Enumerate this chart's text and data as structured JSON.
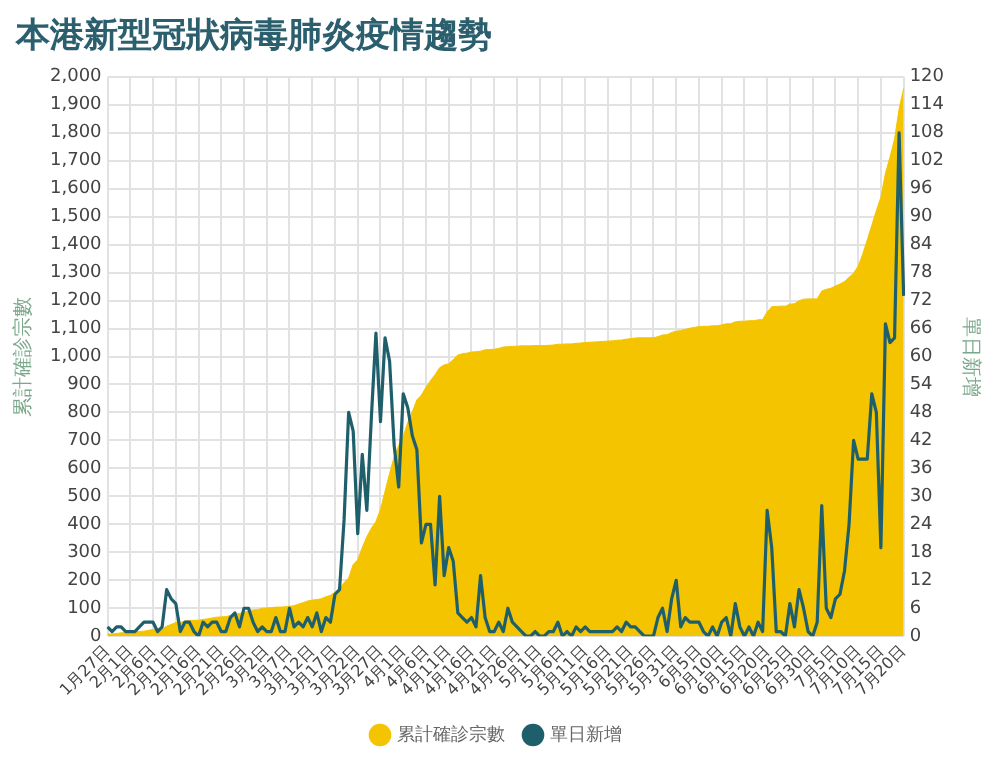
{
  "chart_data": {
    "type": "line",
    "title": "本港新型冠狀病毒肺炎疫情趨勢",
    "ylabel": "累計確診宗數",
    "y2label": "單日新增",
    "categories": [
      "1月27日",
      null,
      null,
      null,
      null,
      "2月1日",
      null,
      null,
      null,
      null,
      "2月6日",
      null,
      null,
      null,
      null,
      "2月11日",
      null,
      null,
      null,
      null,
      "2月16日",
      null,
      null,
      null,
      null,
      "2月21日",
      null,
      null,
      null,
      null,
      "2月26日",
      null,
      null,
      null,
      null,
      "3月2日",
      null,
      null,
      null,
      null,
      "3月7日",
      null,
      null,
      null,
      null,
      "3月12日",
      null,
      null,
      null,
      null,
      "3月17日",
      null,
      null,
      null,
      null,
      "3月22日",
      null,
      null,
      null,
      null,
      "3月27日",
      null,
      null,
      null,
      null,
      "4月1日",
      null,
      null,
      null,
      null,
      "4月6日",
      null,
      null,
      null,
      null,
      "4月11日",
      null,
      null,
      null,
      null,
      "4月16日",
      null,
      null,
      null,
      null,
      "4月21日",
      null,
      null,
      null,
      null,
      "4月26日",
      null,
      null,
      null,
      null,
      "5月1日",
      null,
      null,
      null,
      null,
      "5月6日",
      null,
      null,
      null,
      null,
      "5月11日",
      null,
      null,
      null,
      null,
      "5月16日",
      null,
      null,
      null,
      null,
      "5月21日",
      null,
      null,
      null,
      null,
      "5月26日",
      null,
      null,
      null,
      null,
      "5月31日",
      null,
      null,
      null,
      null,
      "6月5日",
      null,
      null,
      null,
      null,
      "6月10日",
      null,
      null,
      null,
      null,
      "6月15日",
      null,
      null,
      null,
      null,
      "6月20日",
      null,
      null,
      null,
      null,
      "6月25日",
      null,
      null,
      null,
      null,
      "6月30日",
      null,
      null,
      null,
      null,
      "7月5日",
      null,
      null,
      null,
      null,
      "7月10日",
      null,
      null,
      null,
      null,
      "7月15日",
      null,
      null,
      null,
      null,
      "7月20日"
    ],
    "series": [
      {
        "name": "累計確診宗數",
        "type": "area",
        "axis": "y",
        "color": "#f5c400",
        "values": [
          8,
          8,
          10,
          12,
          13,
          14,
          15,
          17,
          18,
          21,
          24,
          25,
          26,
          36,
          42,
          49,
          50,
          53,
          56,
          57,
          57,
          60,
          62,
          65,
          68,
          69,
          70,
          74,
          79,
          81,
          85,
          91,
          94,
          95,
          100,
          101,
          102,
          104,
          104,
          105,
          107,
          109,
          115,
          120,
          126,
          129,
          131,
          134,
          141,
          146,
          157,
          167,
          192,
          208,
          256,
          273,
          317,
          356,
          386,
          410,
          453,
          518,
          582,
          641,
          682,
          714,
          765,
          802,
          845,
          862,
          890,
          914,
          935,
          960,
          970,
          974,
          989,
          1005,
          1010,
          1012,
          1016,
          1017,
          1019,
          1024,
          1025,
          1026,
          1029,
          1034,
          1035,
          1036,
          1037,
          1038,
          1038,
          1038,
          1039,
          1039,
          1039,
          1040,
          1041,
          1044,
          1044,
          1045,
          1045,
          1047,
          1048,
          1050,
          1051,
          1052,
          1053,
          1054,
          1055,
          1056,
          1058,
          1059,
          1062,
          1064,
          1066,
          1067,
          1067,
          1067,
          1067,
          1071,
          1077,
          1078,
          1086,
          1090,
          1093,
          1097,
          1101,
          1104,
          1107,
          1108,
          1108,
          1110,
          1110,
          1113,
          1117,
          1117,
          1124,
          1126,
          1126,
          1128,
          1128,
          1131,
          1132,
          1159,
          1178,
          1179,
          1180,
          1180,
          1187,
          1189,
          1199,
          1205,
          1206,
          1206,
          1206,
          1234,
          1240,
          1244,
          1252,
          1259,
          1268,
          1283,
          1298,
          1323,
          1366,
          1417,
          1469,
          1521,
          1570,
          1655,
          1713,
          1777,
          1885,
          1958
        ]
      },
      {
        "name": "單日新增",
        "type": "line",
        "axis": "y2",
        "color": "#1f5f6b",
        "values": [
          2,
          1,
          2,
          2,
          1,
          1,
          1,
          2,
          3,
          3,
          3,
          1,
          2,
          10,
          8,
          7,
          1,
          3,
          3,
          1,
          0,
          3,
          2,
          3,
          3,
          1,
          1,
          4,
          5,
          2,
          6,
          6,
          3,
          1,
          2,
          1,
          1,
          4,
          1,
          1,
          6,
          2,
          3,
          2,
          4,
          2,
          5,
          1,
          4,
          3,
          9,
          10,
          25,
          48,
          44,
          22,
          39,
          27,
          47,
          65,
          46,
          64,
          59,
          41,
          32,
          52,
          49,
          43,
          40,
          20,
          24,
          24,
          11,
          30,
          13,
          19,
          16,
          5,
          4,
          3,
          4,
          2,
          13,
          4,
          1,
          1,
          3,
          1,
          6,
          3,
          2,
          1,
          0,
          0,
          1,
          0,
          0,
          1,
          1,
          3,
          0,
          1,
          0,
          2,
          1,
          2,
          1,
          1,
          1,
          1,
          1,
          1,
          2,
          1,
          3,
          2,
          2,
          1,
          0,
          0,
          0,
          4,
          6,
          1,
          8,
          12,
          2,
          4,
          3,
          3,
          3,
          1,
          0,
          2,
          0,
          3,
          4,
          0,
          7,
          2,
          0,
          2,
          0,
          3,
          1,
          27,
          19,
          1,
          1,
          0,
          7,
          2,
          10,
          6,
          1,
          0,
          3,
          28,
          6,
          4,
          8,
          9,
          14,
          24,
          42,
          38,
          38,
          38,
          52,
          48,
          19,
          67,
          63,
          64,
          108,
          73
        ]
      }
    ],
    "ylim": [
      0,
      2000
    ],
    "yticks": [
      0,
      100,
      200,
      300,
      400,
      500,
      600,
      700,
      800,
      900,
      {
        "value": 1000,
        "label": "1,000"
      },
      {
        "value": 1100,
        "label": "1,100"
      },
      {
        "value": 1200,
        "label": "1,200"
      },
      {
        "value": 1300,
        "label": "1,300"
      },
      {
        "value": 1400,
        "label": "1,400"
      },
      {
        "value": 1500,
        "label": "1,500"
      },
      {
        "value": 1600,
        "label": "1,600"
      },
      {
        "value": 1700,
        "label": "1,700"
      },
      {
        "value": 1800,
        "label": "1,800"
      },
      {
        "value": 1900,
        "label": "1,900"
      },
      {
        "value": 2000,
        "label": "2,000"
      }
    ],
    "y2lim": [
      0,
      120
    ],
    "y2ticks": [
      0,
      6,
      12,
      18,
      24,
      30,
      36,
      42,
      48,
      54,
      60,
      66,
      72,
      78,
      84,
      90,
      96,
      102,
      108,
      114,
      120
    ],
    "grid": true,
    "legend": "bottom",
    "marker": "none",
    "line_style": "solid"
  }
}
